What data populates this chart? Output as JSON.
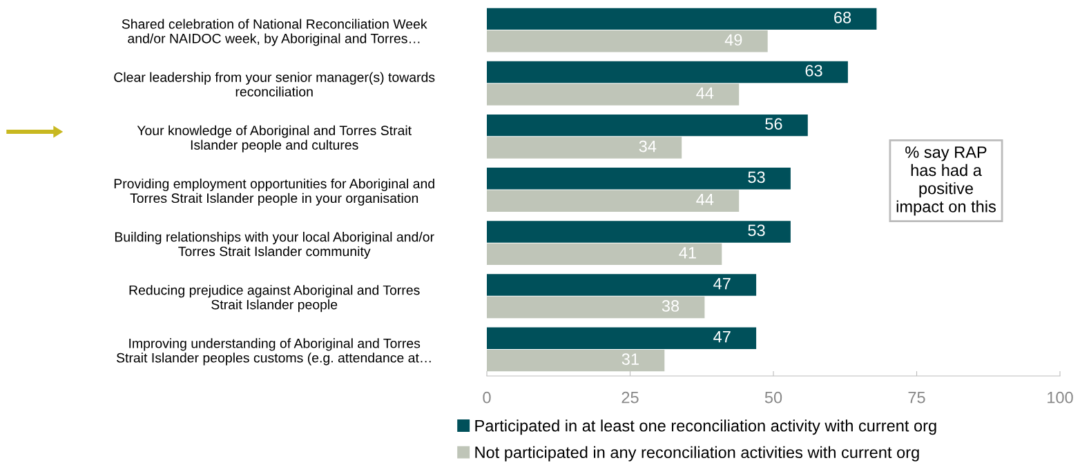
{
  "chart_data": {
    "type": "bar",
    "orientation": "horizontal",
    "categories": [
      "Shared celebration of National Reconciliation Week\nand/or NAIDOC week, by Aboriginal and Torres…",
      "Clear leadership from your senior manager(s) towards\nreconciliation",
      "Your knowledge of Aboriginal and Torres Strait\nIslander people and cultures",
      "Providing employment opportunities for Aboriginal and\nTorres Strait Islander people in your organisation",
      "Building relationships with your local Aboriginal and/or\nTorres Strait Islander community",
      "Reducing prejudice against Aboriginal and Torres\nStrait Islander people",
      "Improving understanding of Aboriginal and Torres\nStrait Islander peoples customs (e.g. attendance at…"
    ],
    "series": [
      {
        "name": "Participated in at least one reconciliation activity with current org",
        "color": "#00505a",
        "values": [
          68,
          63,
          56,
          53,
          53,
          47,
          47
        ]
      },
      {
        "name": "Not participated in any reconciliation activities with current org",
        "color": "#bfc5b8",
        "values": [
          49,
          44,
          34,
          44,
          41,
          38,
          31
        ]
      }
    ],
    "xlim": [
      0,
      100
    ],
    "xticks": [
      0,
      25,
      50,
      75,
      100
    ],
    "grid": false,
    "legend": "bottom",
    "data_labels": true,
    "annotations": [
      "% say RAP\nhas had a\npositive\nimpact on this"
    ]
  }
}
